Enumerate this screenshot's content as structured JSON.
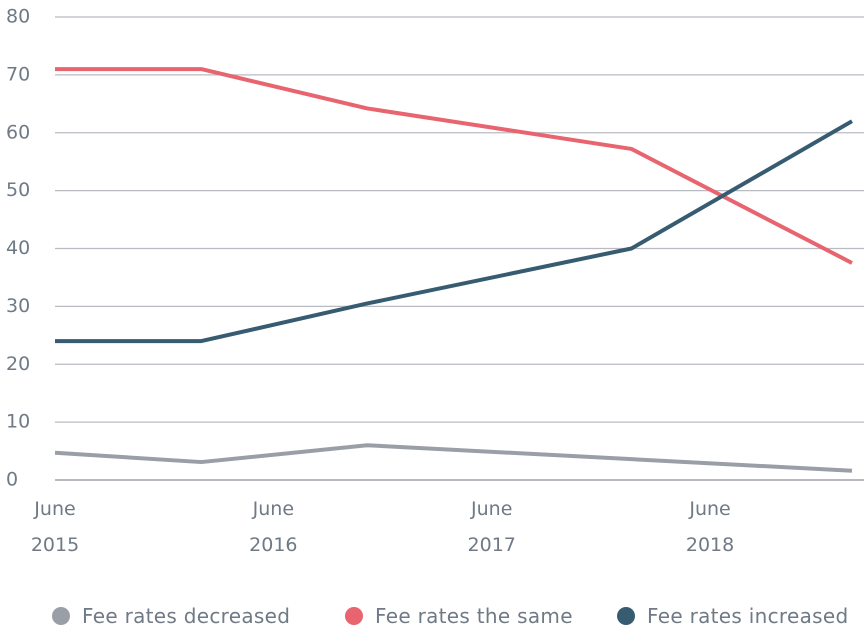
{
  "chart_data": {
    "type": "line",
    "x": [
      2015.5,
      2016.17,
      2016.93,
      2018.14,
      2019.15
    ],
    "xlim": [
      2015.5,
      2019.15
    ],
    "xticks": [
      {
        "value": 2015.5,
        "label": "June 2015"
      },
      {
        "value": 2016.5,
        "label": "June 2016"
      },
      {
        "value": 2017.5,
        "label": "June 2017"
      },
      {
        "value": 2018.5,
        "label": "June 2018"
      }
    ],
    "ylim": [
      0,
      80
    ],
    "yticks": [
      0,
      10,
      20,
      30,
      40,
      50,
      60,
      70,
      80
    ],
    "grid": true,
    "legend": "bottom",
    "series": [
      {
        "name": "Fee rates decreased",
        "color": "#9a9ea6",
        "values": [
          4.7,
          3.1,
          6.0,
          3.6,
          1.6
        ]
      },
      {
        "name": "Fee rates the same",
        "color": "#e8646f",
        "values": [
          71,
          71,
          64.2,
          57.2,
          37.5
        ]
      },
      {
        "name": "Fee rates increased",
        "color": "#375b71",
        "values": [
          24,
          24,
          30.5,
          40,
          62
        ]
      }
    ]
  }
}
